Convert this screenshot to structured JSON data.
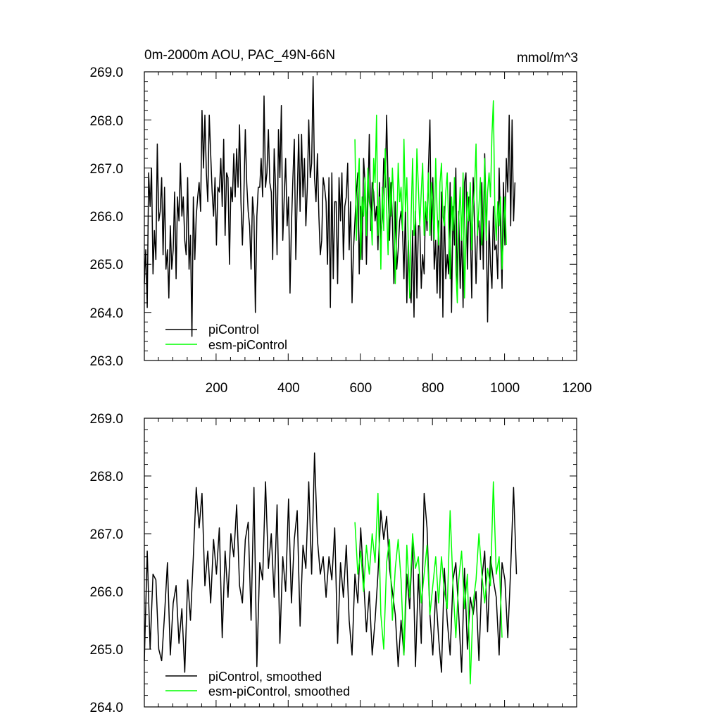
{
  "chart_data": [
    {
      "type": "line",
      "title": "0m-2000m AOU, PAC_49N-66N",
      "units": "mmol/m^3",
      "xlabel": "",
      "ylabel": "",
      "xlim": [
        1,
        1200
      ],
      "ylim": [
        263.0,
        269.0
      ],
      "x_ticks": [
        200,
        400,
        600,
        800,
        1000,
        1200
      ],
      "x_tick_labels": [
        "200",
        "400",
        "600",
        "800",
        "1000",
        "1200"
      ],
      "y_ticks": [
        263.0,
        264.0,
        265.0,
        266.0,
        267.0,
        268.0,
        269.0
      ],
      "y_tick_labels": [
        "263.0",
        "264.0",
        "265.0",
        "266.0",
        "267.0",
        "268.0",
        "269.0"
      ],
      "legend": "bottom-left",
      "series": [
        {
          "name": "piControl",
          "color": "#000000",
          "x_start": 1,
          "x_step": 4,
          "values": [
            264.6,
            265.3,
            264.1,
            266.9,
            266.2,
            267.0,
            264.8,
            265.7,
            265.1,
            267.5,
            265.9,
            266.1,
            266.8,
            265.2,
            266.6,
            264.9,
            265.3,
            264.3,
            265.8,
            264.9,
            265.3,
            266.5,
            264.7,
            266.4,
            265.9,
            267.1,
            266.0,
            266.4,
            265.5,
            265.2,
            266.8,
            264.9,
            265.6,
            263.5,
            266.4,
            265.1,
            266.0,
            266.4,
            266.7,
            266.1,
            268.2,
            267.0,
            268.1,
            266.9,
            266.3,
            268.1,
            267.3,
            266.5,
            266.0,
            266.8,
            265.4,
            266.6,
            266.5,
            267.2,
            266.2,
            267.6,
            265.6,
            266.9,
            266.8,
            265.0,
            266.6,
            266.3,
            267.3,
            266.4,
            267.4,
            266.6,
            267.9,
            266.3,
            265.4,
            266.4,
            267.8,
            266.7,
            266.1,
            265.8,
            264.9,
            266.4,
            266.0,
            264.0,
            266.0,
            266.6,
            266.6,
            267.2,
            266.4,
            268.5,
            266.6,
            266.9,
            267.8,
            266.7,
            266.5,
            265.1,
            267.4,
            266.6,
            265.2,
            267.8,
            266.8,
            268.3,
            265.5,
            266.4,
            267.2,
            265.8,
            266.4,
            264.4,
            265.8,
            266.8,
            267.6,
            265.1,
            266.4,
            267.7,
            266.1,
            267.7,
            266.4,
            267.2,
            265.8,
            266.6,
            268.0,
            266.8,
            267.1,
            268.9,
            266.8,
            266.3,
            267.3,
            266.0,
            265.2,
            265.5,
            266.8,
            266.6,
            266.3,
            265.0,
            266.8,
            264.1,
            266.9,
            264.7,
            266.3,
            266.3,
            264.6,
            266.8,
            265.9,
            266.9,
            265.1,
            266.2,
            266.4,
            267.1,
            265.3,
            266.3,
            264.2,
            265.3,
            265.9,
            266.5,
            266.9,
            264.8,
            266.2,
            265.1,
            267.2,
            266.7,
            265.0,
            266.3,
            267.7,
            265.7,
            266.7,
            266.5,
            265.9,
            266.2,
            265.3,
            266.7,
            265.5,
            266.0,
            267.2,
            266.6,
            268.1,
            266.6,
            265.5,
            266.7,
            265.9,
            264.6,
            266.3,
            264.9,
            265.3,
            265.9,
            266.1,
            265.7,
            264.7,
            266.2,
            264.2,
            265.5,
            264.5,
            264.2,
            265.7,
            263.9,
            266.1,
            264.3,
            265.8,
            265.8,
            264.5,
            265.2,
            264.8,
            266.3,
            265.7,
            267.0,
            268.0,
            265.5,
            266.8,
            264.9,
            265.5,
            264.4,
            265.9,
            264.3,
            266.5,
            263.9,
            266.2,
            264.7,
            265.2,
            264.8,
            266.7,
            264.0,
            266.2,
            265.4,
            267.0,
            264.4,
            266.1,
            264.5,
            265.7,
            264.1,
            266.7,
            266.9,
            264.9,
            266.4,
            265.8,
            264.3,
            266.8,
            265.8,
            264.6,
            265.7,
            265.9,
            265.1,
            266.7,
            264.9,
            267.3,
            265.9,
            263.8,
            265.9,
            265.0,
            264.5,
            266.2,
            265.3,
            265.4,
            264.7,
            267.0,
            265.7,
            264.5,
            266.7,
            265.4,
            267.2,
            266.5,
            268.1,
            265.8,
            268.0,
            265.9,
            266.7
          ]
        },
        {
          "name": "esm-piControl",
          "color": "#00ff00",
          "x_start": 585,
          "x_step": 4,
          "values": [
            267.6,
            265.5,
            266.6,
            267.2,
            265.1,
            266.4,
            266.0,
            266.8,
            265.6,
            267.0,
            266.3,
            266.1,
            265.4,
            267.2,
            266.7,
            268.1,
            265.6,
            266.4,
            264.9,
            266.6,
            265.7,
            267.4,
            266.2,
            265.2,
            266.8,
            266.0,
            267.0,
            266.3,
            264.6,
            265.7,
            267.1,
            266.3,
            266.6,
            265.7,
            267.6,
            266.1,
            266.8,
            265.4,
            264.3,
            266.0,
            267.2,
            265.6,
            265.9,
            267.4,
            266.6,
            265.8,
            266.5,
            267.1,
            265.6,
            266.3,
            265.9,
            266.9,
            265.6,
            266.7,
            266.3,
            265.5,
            267.2,
            266.1,
            265.4,
            266.7,
            267.1,
            266.0,
            265.8,
            266.5,
            266.9,
            265.8,
            264.7,
            266.4,
            265.7,
            266.8,
            264.9,
            264.2,
            265.9,
            266.6,
            265.5,
            266.9,
            264.3,
            265.6,
            266.5,
            265.9,
            266.7,
            265.3,
            266.2,
            266.6,
            267.5,
            265.6,
            266.2,
            266.8,
            265.4,
            266.0,
            267.2,
            265.5,
            266.5,
            266.9,
            266.4,
            267.7,
            268.4,
            266.1,
            265.5,
            266.3,
            265.8,
            266.4,
            264.9,
            265.6,
            266.4,
            265.4
          ]
        }
      ],
      "legend_entries": [
        "piControl",
        "esm-piControl"
      ]
    },
    {
      "type": "line",
      "title": "",
      "xlabel": "",
      "ylabel": "",
      "xlim": [
        1,
        1200
      ],
      "ylim": [
        264.0,
        269.0
      ],
      "x_ticks": [
        200,
        400,
        600,
        800,
        1000,
        1200
      ],
      "y_ticks": [
        264.0,
        265.0,
        266.0,
        267.0,
        268.0,
        269.0
      ],
      "y_tick_labels": [
        "264.0",
        "265.0",
        "266.0",
        "267.0",
        "268.0",
        "269.0"
      ],
      "legend": "bottom-left",
      "series": [
        {
          "name": "piControl, smoothed",
          "color": "#000000",
          "x_start": 1,
          "x_step": 8,
          "values": [
            264.8,
            266.7,
            265.0,
            266.3,
            266.2,
            265.0,
            264.8,
            265.6,
            266.5,
            264.9,
            265.8,
            266.1,
            265.1,
            265.7,
            264.6,
            266.2,
            265.5,
            266.6,
            267.8,
            267.1,
            267.7,
            266.1,
            266.7,
            265.8,
            266.9,
            266.3,
            267.1,
            265.2,
            266.7,
            265.9,
            267.0,
            266.6,
            267.5,
            266.1,
            265.8,
            266.9,
            267.2,
            265.5,
            267.8,
            264.7,
            266.5,
            266.2,
            267.9,
            266.4,
            267.0,
            265.9,
            267.5,
            265.1,
            266.6,
            266.0,
            267.6,
            265.8,
            266.9,
            267.4,
            265.4,
            266.8,
            266.4,
            267.9,
            266.3,
            268.4,
            266.9,
            266.3,
            266.6,
            265.9,
            266.6,
            266.2,
            267.1,
            265.1,
            266.5,
            265.9,
            266.8,
            265.5,
            264.9,
            266.3,
            265.8,
            267.1,
            266.2,
            265.3,
            266.0,
            264.9,
            265.5,
            266.3,
            267.4,
            266.9,
            267.3,
            266.4,
            266.0,
            265.6,
            264.7,
            265.5,
            264.9,
            266.3,
            265.7,
            266.9,
            264.7,
            266.3,
            265.1,
            267.7,
            267.1,
            265.6,
            264.9,
            266.0,
            265.2,
            264.6,
            266.4,
            265.5,
            264.9,
            266.2,
            266.5,
            265.6,
            264.6,
            266.4,
            265.0,
            265.9,
            265.6,
            266.0,
            264.8,
            266.2,
            266.7,
            265.3,
            266.6,
            266.2,
            265.9,
            264.9,
            266.5,
            266.2,
            265.2,
            266.4,
            267.8,
            266.3
          ]
        },
        {
          "name": "esm-piControl, smoothed",
          "color": "#00ff00",
          "x_start": 585,
          "x_step": 8,
          "values": [
            267.2,
            266.3,
            266.7,
            266.0,
            266.8,
            266.3,
            267.0,
            266.5,
            267.7,
            265.6,
            265.0,
            266.5,
            266.9,
            265.5,
            266.4,
            266.9,
            266.2,
            264.9,
            266.8,
            265.9,
            267.0,
            266.4,
            266.6,
            265.8,
            266.3,
            266.8,
            265.6,
            266.1,
            266.6,
            265.8,
            266.6,
            266.0,
            265.7,
            267.4,
            266.1,
            265.2,
            266.2,
            266.7,
            265.7,
            266.3,
            264.4,
            265.8,
            266.2,
            267.0,
            266.3,
            265.8,
            266.4,
            266.1,
            267.9,
            266.3,
            266.6,
            265.2
          ]
        }
      ],
      "legend_entries": [
        "piControl, smoothed",
        "esm-piControl, smoothed"
      ]
    }
  ]
}
